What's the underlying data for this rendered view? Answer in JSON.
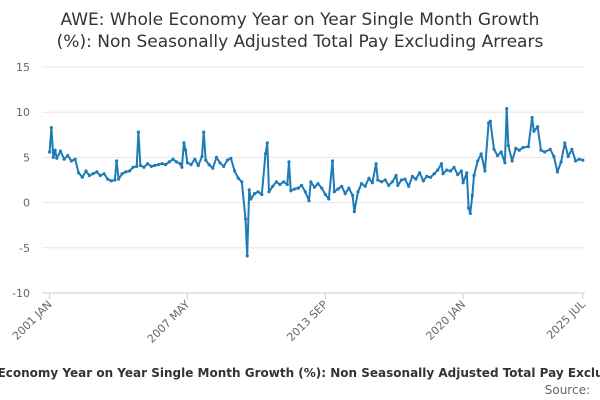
{
  "chart_data": {
    "type": "line",
    "title_lines": [
      "AWE: Whole Economy Year on Year Single Month Growth",
      "(%): Non Seasonally Adjusted Total Pay Excluding Arrears"
    ],
    "xlabel": "",
    "ylabel": "",
    "ylim": [
      -10,
      15
    ],
    "yticks": [
      "15",
      "10",
      "5",
      "0",
      "-5",
      "-10"
    ],
    "xticks": [
      {
        "label": "2001 JAN",
        "t": 2001.0
      },
      {
        "label": "2007 MAY",
        "t": 2007.33
      },
      {
        "label": "2013 SEP",
        "t": 2013.67
      },
      {
        "label": "2020 JAN",
        "t": 2020.0
      },
      {
        "label": "2025 JUL",
        "t": 2025.5
      }
    ],
    "grid": true,
    "legend_position": "bottom",
    "series": [
      {
        "name": "AWE: Whole Economy Year on Year Single Month Growth (%): Non Seasonally Adjusted Total Pay Excluding Arrears",
        "color": "#1f7ab8",
        "points": [
          [
            2001.0,
            5.6
          ],
          [
            2001.08,
            8.3
          ],
          [
            2001.17,
            5.0
          ],
          [
            2001.25,
            5.8
          ],
          [
            2001.33,
            4.9
          ],
          [
            2001.5,
            5.7
          ],
          [
            2001.67,
            4.8
          ],
          [
            2001.83,
            5.2
          ],
          [
            2002.0,
            4.6
          ],
          [
            2002.17,
            4.8
          ],
          [
            2002.33,
            3.3
          ],
          [
            2002.5,
            2.8
          ],
          [
            2002.67,
            3.5
          ],
          [
            2002.83,
            3.0
          ],
          [
            2003.0,
            3.2
          ],
          [
            2003.17,
            3.4
          ],
          [
            2003.33,
            3.0
          ],
          [
            2003.5,
            3.2
          ],
          [
            2003.67,
            2.6
          ],
          [
            2003.83,
            2.4
          ],
          [
            2004.0,
            2.5
          ],
          [
            2004.08,
            4.6
          ],
          [
            2004.17,
            2.6
          ],
          [
            2004.33,
            3.2
          ],
          [
            2004.5,
            3.4
          ],
          [
            2004.67,
            3.5
          ],
          [
            2004.83,
            3.9
          ],
          [
            2005.0,
            4.0
          ],
          [
            2005.08,
            7.8
          ],
          [
            2005.17,
            4.1
          ],
          [
            2005.33,
            3.9
          ],
          [
            2005.5,
            4.3
          ],
          [
            2005.67,
            4.0
          ],
          [
            2005.83,
            4.1
          ],
          [
            2006.0,
            4.2
          ],
          [
            2006.17,
            4.3
          ],
          [
            2006.33,
            4.2
          ],
          [
            2006.5,
            4.5
          ],
          [
            2006.67,
            4.8
          ],
          [
            2006.83,
            4.5
          ],
          [
            2007.0,
            4.3
          ],
          [
            2007.08,
            3.9
          ],
          [
            2007.17,
            6.6
          ],
          [
            2007.25,
            5.8
          ],
          [
            2007.33,
            4.4
          ],
          [
            2007.5,
            4.2
          ],
          [
            2007.67,
            4.8
          ],
          [
            2007.83,
            4.1
          ],
          [
            2008.0,
            5.1
          ],
          [
            2008.08,
            7.8
          ],
          [
            2008.17,
            4.7
          ],
          [
            2008.33,
            4.2
          ],
          [
            2008.5,
            3.8
          ],
          [
            2008.67,
            5.0
          ],
          [
            2008.83,
            4.4
          ],
          [
            2009.0,
            4.0
          ],
          [
            2009.17,
            4.7
          ],
          [
            2009.33,
            4.9
          ],
          [
            2009.5,
            3.5
          ],
          [
            2009.67,
            2.7
          ],
          [
            2009.83,
            2.3
          ],
          [
            2010.0,
            -1.8
          ],
          [
            2010.08,
            -5.9
          ],
          [
            2010.17,
            1.4
          ],
          [
            2010.25,
            0.4
          ],
          [
            2010.42,
            1.0
          ],
          [
            2010.58,
            1.2
          ],
          [
            2010.75,
            0.9
          ],
          [
            2010.92,
            5.4
          ],
          [
            2011.0,
            6.6
          ],
          [
            2011.08,
            1.2
          ],
          [
            2011.25,
            1.8
          ],
          [
            2011.42,
            2.3
          ],
          [
            2011.58,
            2.0
          ],
          [
            2011.75,
            2.3
          ],
          [
            2011.92,
            2.0
          ],
          [
            2012.0,
            4.5
          ],
          [
            2012.08,
            1.3
          ],
          [
            2012.25,
            1.5
          ],
          [
            2012.42,
            1.6
          ],
          [
            2012.58,
            1.9
          ],
          [
            2012.75,
            1.2
          ],
          [
            2012.92,
            0.2
          ],
          [
            2013.0,
            2.3
          ],
          [
            2013.17,
            1.7
          ],
          [
            2013.33,
            2.1
          ],
          [
            2013.5,
            1.6
          ],
          [
            2013.67,
            0.9
          ],
          [
            2013.83,
            0.4
          ],
          [
            2014.0,
            4.6
          ],
          [
            2014.08,
            1.2
          ],
          [
            2014.25,
            1.5
          ],
          [
            2014.42,
            1.8
          ],
          [
            2014.58,
            1.0
          ],
          [
            2014.75,
            1.6
          ],
          [
            2014.92,
            0.8
          ],
          [
            2015.0,
            -1.0
          ],
          [
            2015.17,
            1.2
          ],
          [
            2015.33,
            2.1
          ],
          [
            2015.5,
            1.8
          ],
          [
            2015.67,
            2.7
          ],
          [
            2015.83,
            2.2
          ],
          [
            2016.0,
            4.3
          ],
          [
            2016.08,
            2.5
          ],
          [
            2016.25,
            2.3
          ],
          [
            2016.42,
            2.5
          ],
          [
            2016.58,
            1.9
          ],
          [
            2016.75,
            2.3
          ],
          [
            2016.92,
            3.0
          ],
          [
            2017.0,
            1.9
          ],
          [
            2017.17,
            2.5
          ],
          [
            2017.33,
            2.6
          ],
          [
            2017.5,
            1.8
          ],
          [
            2017.67,
            2.9
          ],
          [
            2017.83,
            2.6
          ],
          [
            2018.0,
            3.3
          ],
          [
            2018.17,
            2.4
          ],
          [
            2018.33,
            2.9
          ],
          [
            2018.5,
            2.8
          ],
          [
            2018.67,
            3.2
          ],
          [
            2018.83,
            3.6
          ],
          [
            2019.0,
            4.3
          ],
          [
            2019.08,
            3.2
          ],
          [
            2019.25,
            3.6
          ],
          [
            2019.42,
            3.5
          ],
          [
            2019.58,
            3.9
          ],
          [
            2019.75,
            3.1
          ],
          [
            2019.92,
            3.5
          ],
          [
            2020.0,
            2.2
          ],
          [
            2020.17,
            3.3
          ],
          [
            2020.25,
            -0.6
          ],
          [
            2020.33,
            -1.2
          ],
          [
            2020.42,
            0.8
          ],
          [
            2020.5,
            3.0
          ],
          [
            2020.67,
            4.6
          ],
          [
            2020.83,
            5.4
          ],
          [
            2021.0,
            3.5
          ],
          [
            2021.17,
            8.8
          ],
          [
            2021.25,
            9.0
          ],
          [
            2021.42,
            5.9
          ],
          [
            2021.58,
            5.2
          ],
          [
            2021.75,
            5.6
          ],
          [
            2021.92,
            4.4
          ],
          [
            2022.0,
            10.4
          ],
          [
            2022.08,
            6.3
          ],
          [
            2022.25,
            4.6
          ],
          [
            2022.42,
            6.0
          ],
          [
            2022.58,
            5.8
          ],
          [
            2022.75,
            6.1
          ],
          [
            2023.0,
            6.2
          ],
          [
            2023.17,
            9.4
          ],
          [
            2023.25,
            7.9
          ],
          [
            2023.42,
            8.4
          ],
          [
            2023.58,
            5.8
          ],
          [
            2023.75,
            5.6
          ],
          [
            2024.0,
            5.9
          ],
          [
            2024.17,
            5.1
          ],
          [
            2024.33,
            3.4
          ],
          [
            2024.5,
            4.5
          ],
          [
            2024.67,
            6.6
          ],
          [
            2024.83,
            5.1
          ],
          [
            2025.0,
            5.9
          ],
          [
            2025.17,
            4.6
          ],
          [
            2025.33,
            4.8
          ],
          [
            2025.5,
            4.7
          ]
        ]
      }
    ],
    "source_text": "Source:"
  }
}
